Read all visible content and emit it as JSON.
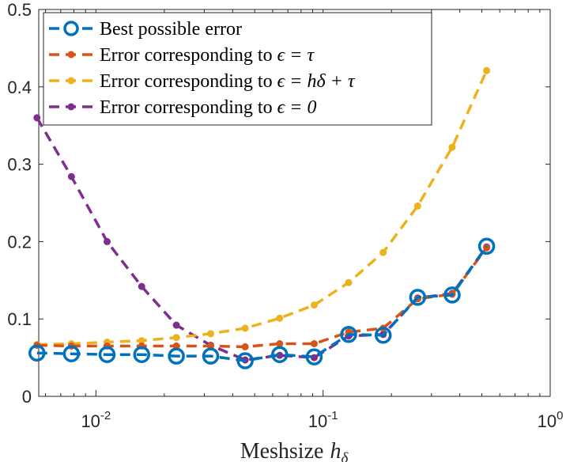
{
  "chart_data": {
    "type": "line",
    "title": "",
    "xlabel": "Meshsize",
    "xlabel_symbol": "h",
    "xlabel_subscript": "δ",
    "ylabel": "",
    "xscale": "log",
    "xlim": [
      0.0056,
      1.0
    ],
    "ylim": [
      0,
      0.5
    ],
    "grid": false,
    "legend_position": "top-left",
    "x_ticks": [
      {
        "value": 0.01,
        "base": "10",
        "exp": "-2"
      },
      {
        "value": 0.1,
        "base": "10",
        "exp": "-1"
      },
      {
        "value": 1,
        "base": "10",
        "exp": "0"
      }
    ],
    "y_ticks": [
      {
        "value": 0,
        "label": "0"
      },
      {
        "value": 0.1,
        "label": "0.1"
      },
      {
        "value": 0.2,
        "label": "0.2"
      },
      {
        "value": 0.3,
        "label": "0.3"
      },
      {
        "value": 0.4,
        "label": "0.4"
      },
      {
        "value": 0.5,
        "label": "0.5"
      }
    ],
    "x": [
      0.0055,
      0.0078,
      0.0112,
      0.0159,
      0.0226,
      0.032,
      0.0454,
      0.0644,
      0.0914,
      0.1296,
      0.1839,
      0.2609,
      0.3701,
      0.525
    ],
    "series": [
      {
        "name": "Best possible error",
        "legend_main": "Best possible error",
        "legend_math": "",
        "color": "#0072BD",
        "marker": "circle-open",
        "values": [
          0.056,
          0.055,
          0.054,
          0.054,
          0.052,
          0.052,
          0.046,
          0.054,
          0.051,
          0.08,
          0.079,
          0.128,
          0.131,
          0.194
        ]
      },
      {
        "name": "Error corresponding to ϵ = τ",
        "legend_main": "Error corresponding to ",
        "legend_math": "ϵ = τ",
        "color": "#D95319",
        "marker": "dot",
        "values": [
          0.066,
          0.065,
          0.065,
          0.065,
          0.065,
          0.065,
          0.064,
          0.068,
          0.068,
          0.083,
          0.088,
          0.126,
          0.132,
          0.192
        ]
      },
      {
        "name": "Error corresponding to ϵ = hδ + τ",
        "legend_main": "Error corresponding to ",
        "legend_math": "ϵ = hδ + τ",
        "color": "#EDB120",
        "marker": "dot",
        "values": [
          0.067,
          0.068,
          0.07,
          0.072,
          0.076,
          0.081,
          0.088,
          0.101,
          0.118,
          0.147,
          0.186,
          0.246,
          0.322,
          0.421
        ]
      },
      {
        "name": "Error corresponding to ϵ = 0",
        "legend_main": "Error corresponding to ",
        "legend_math": "ϵ = 0",
        "color": "#7E2F8E",
        "marker": "dot",
        "values": [
          0.36,
          0.284,
          0.2,
          0.142,
          0.092,
          0.066,
          0.047,
          0.053,
          0.05,
          0.078,
          0.08,
          0.127,
          0.133,
          0.193
        ]
      }
    ]
  }
}
